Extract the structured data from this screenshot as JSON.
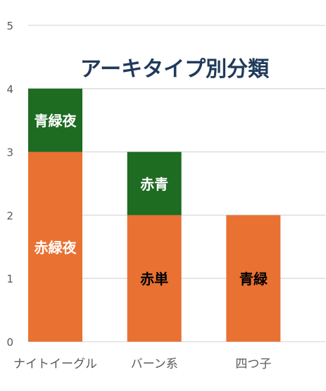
{
  "chart_data": {
    "type": "bar",
    "stacked": true,
    "title": "アーキタイプ別分類",
    "xlabel": "",
    "ylabel": "",
    "ylim": [
      0,
      5
    ],
    "yticks": [
      0,
      1,
      2,
      3,
      4,
      5
    ],
    "grid": true,
    "legend": "none",
    "categories": [
      "ナイトイーグル",
      "バーン系",
      "四つ子"
    ],
    "bars": [
      {
        "segments": [
          {
            "label": "赤緑夜",
            "value": 3,
            "color": "#e97132",
            "label_color": "#ffffff"
          },
          {
            "label": "青緑夜",
            "value": 1,
            "color": "#1e6b22",
            "label_color": "#ffffff"
          }
        ]
      },
      {
        "segments": [
          {
            "label": "赤単",
            "value": 2,
            "color": "#e97132",
            "label_color": "#000000"
          },
          {
            "label": "赤青",
            "value": 1,
            "color": "#1e6b22",
            "label_color": "#ffffff"
          }
        ]
      },
      {
        "segments": [
          {
            "label": "青緑",
            "value": 2,
            "color": "#e97132",
            "label_color": "#000000"
          }
        ]
      }
    ],
    "colors": {
      "grid": "#d9d9d9",
      "axis_text": "#595959",
      "title": "#1f3a5a"
    }
  }
}
